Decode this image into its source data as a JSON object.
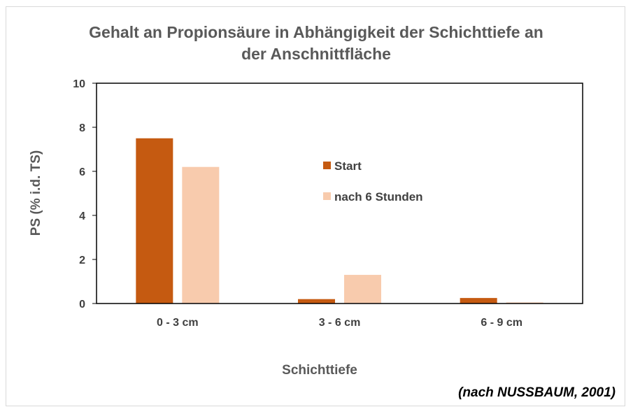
{
  "chart_data": {
    "type": "bar",
    "title_lines": [
      "Gehalt an Propionsäure in Abhängigkeit der Schichttiefe an",
      "der Anschnittfläche"
    ],
    "xlabel": "Schichttiefe",
    "ylabel": "PS (% i.d. TS)",
    "categories": [
      "0 - 3 cm",
      "3 - 6 cm",
      "6 - 9 cm"
    ],
    "series": [
      {
        "name": "Start",
        "values": [
          7.5,
          0.2,
          0.25
        ],
        "color": "#c55a11"
      },
      {
        "name": "nach 6 Stunden",
        "values": [
          6.2,
          1.3,
          0.05
        ],
        "color": "#f8cbad"
      }
    ],
    "ylim": [
      0,
      10
    ],
    "yticks": [
      "0",
      "2",
      "4",
      "6",
      "8",
      "10"
    ],
    "grid": false,
    "legend_position": "inside-center"
  },
  "source_note": "(nach NUSSBAUM, 2001)"
}
